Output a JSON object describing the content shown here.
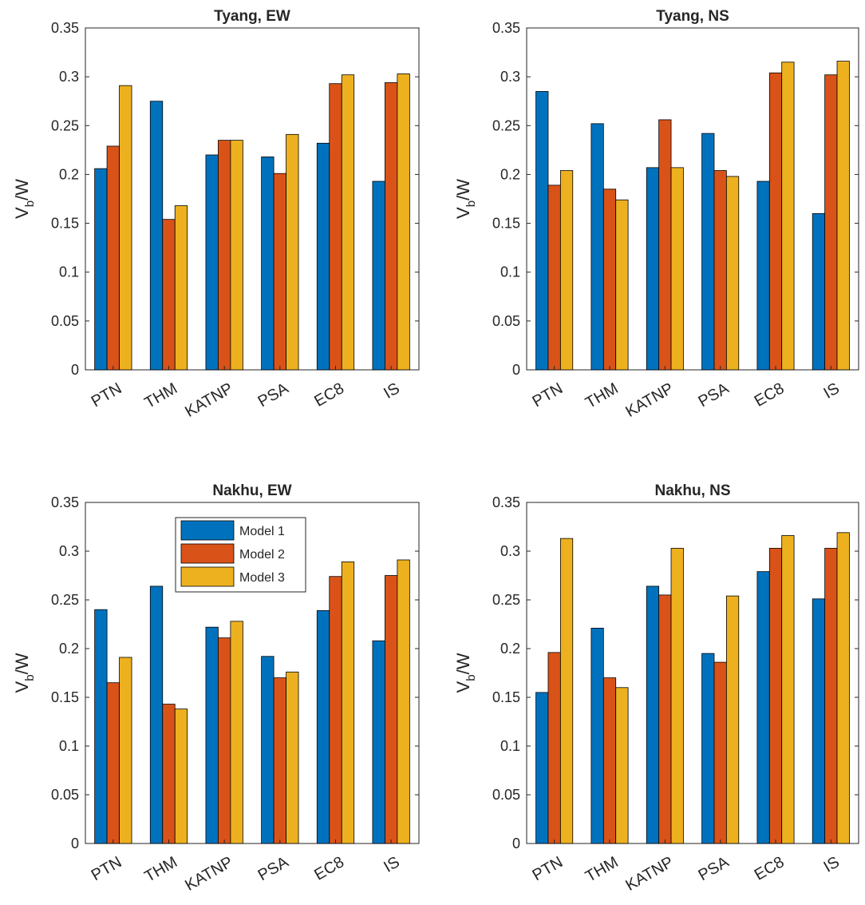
{
  "colors": {
    "model1": "#0072BD",
    "model2": "#D95319",
    "model3": "#EDB120"
  },
  "chart_data": [
    {
      "type": "bar",
      "title": "Tyang, EW",
      "ylabel": "V_b/W",
      "ylim": [
        0,
        0.35
      ],
      "yticks": [
        "0",
        "0.05",
        "0.1",
        "0.15",
        "0.2",
        "0.25",
        "0.3",
        "0.35"
      ],
      "categories": [
        "PTN",
        "THM",
        "KATNP",
        "PSA",
        "EC8",
        "IS"
      ],
      "series": [
        {
          "name": "Model 1",
          "values": [
            0.206,
            0.275,
            0.22,
            0.218,
            0.232,
            0.193
          ]
        },
        {
          "name": "Model 2",
          "values": [
            0.229,
            0.154,
            0.235,
            0.201,
            0.293,
            0.294
          ]
        },
        {
          "name": "Model 3",
          "values": [
            0.291,
            0.168,
            0.235,
            0.241,
            0.302,
            0.303
          ]
        }
      ]
    },
    {
      "type": "bar",
      "title": "Tyang, NS",
      "ylabel": "V_b/W",
      "ylim": [
        0,
        0.35
      ],
      "yticks": [
        "0",
        "0.05",
        "0.1",
        "0.15",
        "0.2",
        "0.25",
        "0.3",
        "0.35"
      ],
      "categories": [
        "PTN",
        "THM",
        "KATNP",
        "PSA",
        "EC8",
        "IS"
      ],
      "series": [
        {
          "name": "Model 1",
          "values": [
            0.285,
            0.252,
            0.207,
            0.242,
            0.193,
            0.16
          ]
        },
        {
          "name": "Model 2",
          "values": [
            0.189,
            0.185,
            0.256,
            0.204,
            0.304,
            0.302
          ]
        },
        {
          "name": "Model 3",
          "values": [
            0.204,
            0.174,
            0.207,
            0.198,
            0.315,
            0.316
          ]
        }
      ]
    },
    {
      "type": "bar",
      "title": "Nakhu, EW",
      "ylabel": "V_b/W",
      "ylim": [
        0,
        0.35
      ],
      "yticks": [
        "0",
        "0.05",
        "0.1",
        "0.15",
        "0.2",
        "0.25",
        "0.3",
        "0.35"
      ],
      "categories": [
        "PTN",
        "THM",
        "KATNP",
        "PSA",
        "EC8",
        "IS"
      ],
      "legend": [
        "Model 1",
        "Model 2",
        "Model 3"
      ],
      "series": [
        {
          "name": "Model 1",
          "values": [
            0.24,
            0.264,
            0.222,
            0.192,
            0.239,
            0.208
          ]
        },
        {
          "name": "Model 2",
          "values": [
            0.165,
            0.143,
            0.211,
            0.17,
            0.274,
            0.275
          ]
        },
        {
          "name": "Model 3",
          "values": [
            0.191,
            0.138,
            0.228,
            0.176,
            0.289,
            0.291
          ]
        }
      ]
    },
    {
      "type": "bar",
      "title": "Nakhu, NS",
      "ylabel": "V_b/W",
      "ylim": [
        0,
        0.35
      ],
      "yticks": [
        "0",
        "0.05",
        "0.1",
        "0.15",
        "0.2",
        "0.25",
        "0.3",
        "0.35"
      ],
      "categories": [
        "PTN",
        "THM",
        "KATNP",
        "PSA",
        "EC8",
        "IS"
      ],
      "series": [
        {
          "name": "Model 1",
          "values": [
            0.155,
            0.221,
            0.264,
            0.195,
            0.279,
            0.251
          ]
        },
        {
          "name": "Model 2",
          "values": [
            0.196,
            0.17,
            0.255,
            0.186,
            0.303,
            0.303
          ]
        },
        {
          "name": "Model 3",
          "values": [
            0.313,
            0.16,
            0.303,
            0.254,
            0.316,
            0.319
          ]
        }
      ]
    }
  ]
}
